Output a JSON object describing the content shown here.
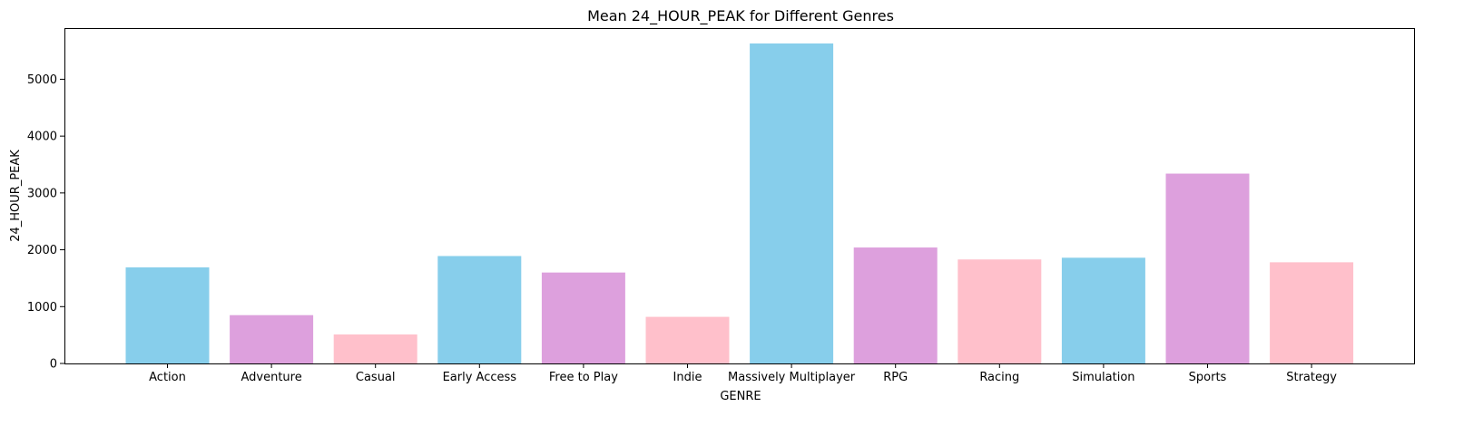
{
  "chart_data": {
    "type": "bar",
    "title": "Mean 24_HOUR_PEAK for Different Genres",
    "xlabel": "GENRE",
    "ylabel": "24_HOUR_PEAK",
    "categories": [
      "Action",
      "Adventure",
      "Casual",
      "Early Access",
      "Free to Play",
      "Indie",
      "Massively Multiplayer",
      "RPG",
      "Racing",
      "Simulation",
      "Sports",
      "Strategy"
    ],
    "values": [
      1690,
      850,
      510,
      1890,
      1600,
      820,
      5630,
      2040,
      1830,
      1860,
      3340,
      1780
    ],
    "colors": [
      "#87ceeb",
      "#dda0dd",
      "#ffc0cb",
      "#87ceeb",
      "#dda0dd",
      "#ffc0cb",
      "#87ceeb",
      "#dda0dd",
      "#ffc0cb",
      "#87ceeb",
      "#dda0dd",
      "#ffc0cb"
    ],
    "ylim": [
      0,
      5900
    ],
    "yticks": [
      0,
      1000,
      2000,
      3000,
      4000,
      5000
    ],
    "grid": false,
    "legend": "none"
  }
}
